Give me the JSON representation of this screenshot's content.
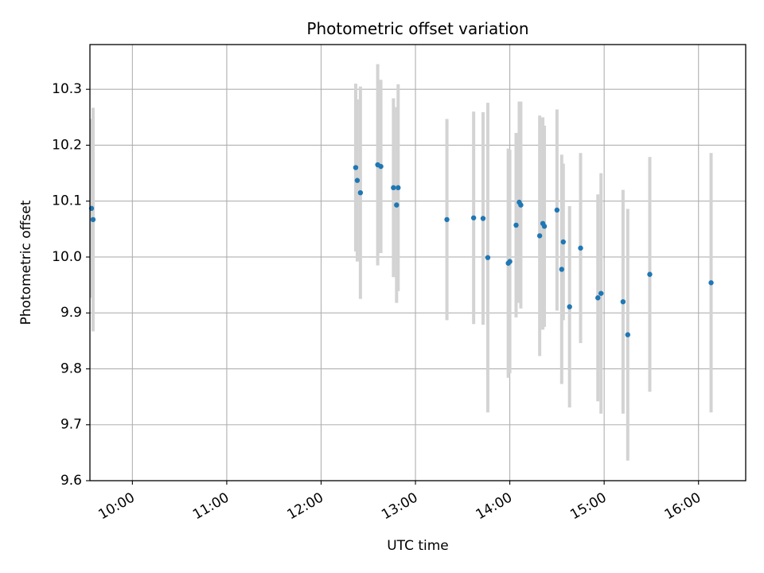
{
  "chart_data": {
    "type": "scatter",
    "title": "Photometric offset variation",
    "xlabel": "UTC time",
    "ylabel": "Photometric offset",
    "x_axis_kind": "time",
    "xlim": [
      "09:33",
      "16:30"
    ],
    "ylim": [
      9.6,
      10.38
    ],
    "xticks": [
      "10:00",
      "11:00",
      "12:00",
      "13:00",
      "14:00",
      "15:00",
      "16:00"
    ],
    "yticks": [
      "9.6",
      "9.7",
      "9.8",
      "9.9",
      "10.0",
      "10.1",
      "10.2",
      "10.3"
    ],
    "grid": true,
    "colors": {
      "points": "#1f77b4",
      "errorbars": "#d3d3d3",
      "grid": "#b0b0b0",
      "axes": "#000000"
    },
    "points": [
      {
        "x": "09:34",
        "y": 10.087,
        "err": 0.16
      },
      {
        "x": "09:35",
        "y": 10.067,
        "err": 0.2
      },
      {
        "x": "12:22",
        "y": 10.16,
        "err": 0.15
      },
      {
        "x": "12:23",
        "y": 10.137,
        "err": 0.145
      },
      {
        "x": "12:25",
        "y": 10.115,
        "err": 0.19
      },
      {
        "x": "12:36",
        "y": 10.165,
        "err": 0.18
      },
      {
        "x": "12:38",
        "y": 10.162,
        "err": 0.155
      },
      {
        "x": "12:46",
        "y": 10.124,
        "err": 0.16
      },
      {
        "x": "12:48",
        "y": 10.093,
        "err": 0.175
      },
      {
        "x": "12:49",
        "y": 10.124,
        "err": 0.185
      },
      {
        "x": "13:20",
        "y": 10.067,
        "err": 0.18
      },
      {
        "x": "13:37",
        "y": 10.07,
        "err": 0.19
      },
      {
        "x": "13:43",
        "y": 10.069,
        "err": 0.19
      },
      {
        "x": "13:46",
        "y": 9.999,
        "err": 0.277
      },
      {
        "x": "13:59",
        "y": 9.989,
        "err": 0.205
      },
      {
        "x": "14:00",
        "y": 9.992,
        "err": 0.2
      },
      {
        "x": "14:04",
        "y": 10.057,
        "err": 0.165
      },
      {
        "x": "14:06",
        "y": 10.098,
        "err": 0.18
      },
      {
        "x": "14:07",
        "y": 10.093,
        "err": 0.185
      },
      {
        "x": "14:19",
        "y": 10.038,
        "err": 0.215
      },
      {
        "x": "14:21",
        "y": 10.06,
        "err": 0.19
      },
      {
        "x": "14:22",
        "y": 10.055,
        "err": 0.18
      },
      {
        "x": "14:30",
        "y": 10.084,
        "err": 0.18
      },
      {
        "x": "14:33",
        "y": 9.978,
        "err": 0.205
      },
      {
        "x": "14:34",
        "y": 10.027,
        "err": 0.14
      },
      {
        "x": "14:38",
        "y": 9.911,
        "err": 0.18
      },
      {
        "x": "14:45",
        "y": 10.016,
        "err": 0.17
      },
      {
        "x": "14:56",
        "y": 9.927,
        "err": 0.185
      },
      {
        "x": "14:58",
        "y": 9.935,
        "err": 0.215
      },
      {
        "x": "15:12",
        "y": 9.92,
        "err": 0.2
      },
      {
        "x": "15:15",
        "y": 9.861,
        "err": 0.225
      },
      {
        "x": "15:29",
        "y": 9.969,
        "err": 0.21
      },
      {
        "x": "16:08",
        "y": 9.954,
        "err": 0.232
      }
    ]
  }
}
